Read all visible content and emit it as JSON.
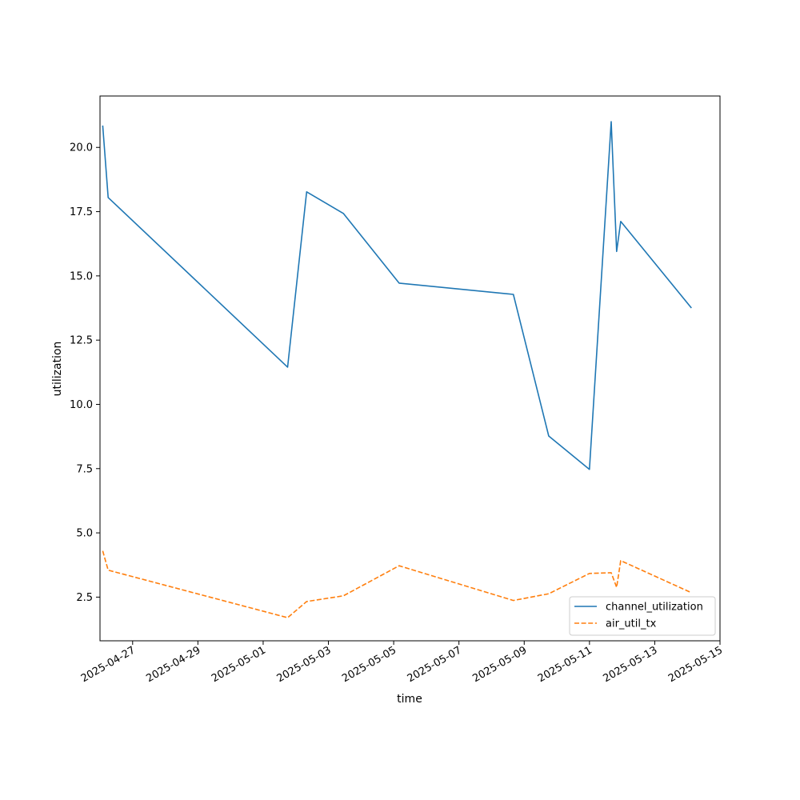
{
  "chart_data": {
    "type": "line",
    "title": "",
    "xlabel": "time",
    "ylabel": "utilization",
    "x_ticks": [
      "2025-04-27",
      "2025-04-29",
      "2025-05-01",
      "2025-05-03",
      "2025-05-05",
      "2025-05-07",
      "2025-05-09",
      "2025-05-11",
      "2025-05-13",
      "2025-05-15"
    ],
    "y_ticks": [
      "2.5",
      "5.0",
      "7.5",
      "10.0",
      "12.5",
      "15.0",
      "17.5",
      "20.0"
    ],
    "xlim": [
      "2025-04-26T00:00",
      "2025-05-15T00:00"
    ],
    "ylim": [
      0.8,
      22.0
    ],
    "grid": false,
    "legend": "lower-right",
    "series": [
      {
        "name": "channel_utilization",
        "color": "#1f77b4",
        "linestyle": "solid",
        "points": [
          [
            "2025-04-26T02:00",
            20.85
          ],
          [
            "2025-04-26T06:00",
            18.05
          ],
          [
            "2025-05-01T18:00",
            11.45
          ],
          [
            "2025-05-02T08:00",
            18.27
          ],
          [
            "2025-05-03T11:00",
            17.43
          ],
          [
            "2025-05-05T04:00",
            14.72
          ],
          [
            "2025-05-08T16:00",
            14.28
          ],
          [
            "2025-05-09T18:00",
            8.77
          ],
          [
            "2025-05-11T00:00",
            7.47
          ],
          [
            "2025-05-11T16:00",
            21.0
          ],
          [
            "2025-05-11T20:00",
            15.95
          ],
          [
            "2025-05-11T23:00",
            17.12
          ],
          [
            "2025-05-14T03:00",
            13.75
          ]
        ]
      },
      {
        "name": "air_util_tx",
        "color": "#ff7f0e",
        "linestyle": "dashed",
        "points": [
          [
            "2025-04-26T02:00",
            4.3
          ],
          [
            "2025-04-26T06:00",
            3.55
          ],
          [
            "2025-05-01T18:00",
            1.7
          ],
          [
            "2025-05-02T08:00",
            2.33
          ],
          [
            "2025-05-03T11:00",
            2.55
          ],
          [
            "2025-05-05T04:00",
            3.72
          ],
          [
            "2025-05-08T16:00",
            2.37
          ],
          [
            "2025-05-09T18:00",
            2.63
          ],
          [
            "2025-05-11T00:00",
            3.42
          ],
          [
            "2025-05-11T16:00",
            3.45
          ],
          [
            "2025-05-11T20:00",
            2.88
          ],
          [
            "2025-05-11T23:00",
            3.92
          ],
          [
            "2025-05-14T03:00",
            2.67
          ]
        ]
      }
    ]
  }
}
